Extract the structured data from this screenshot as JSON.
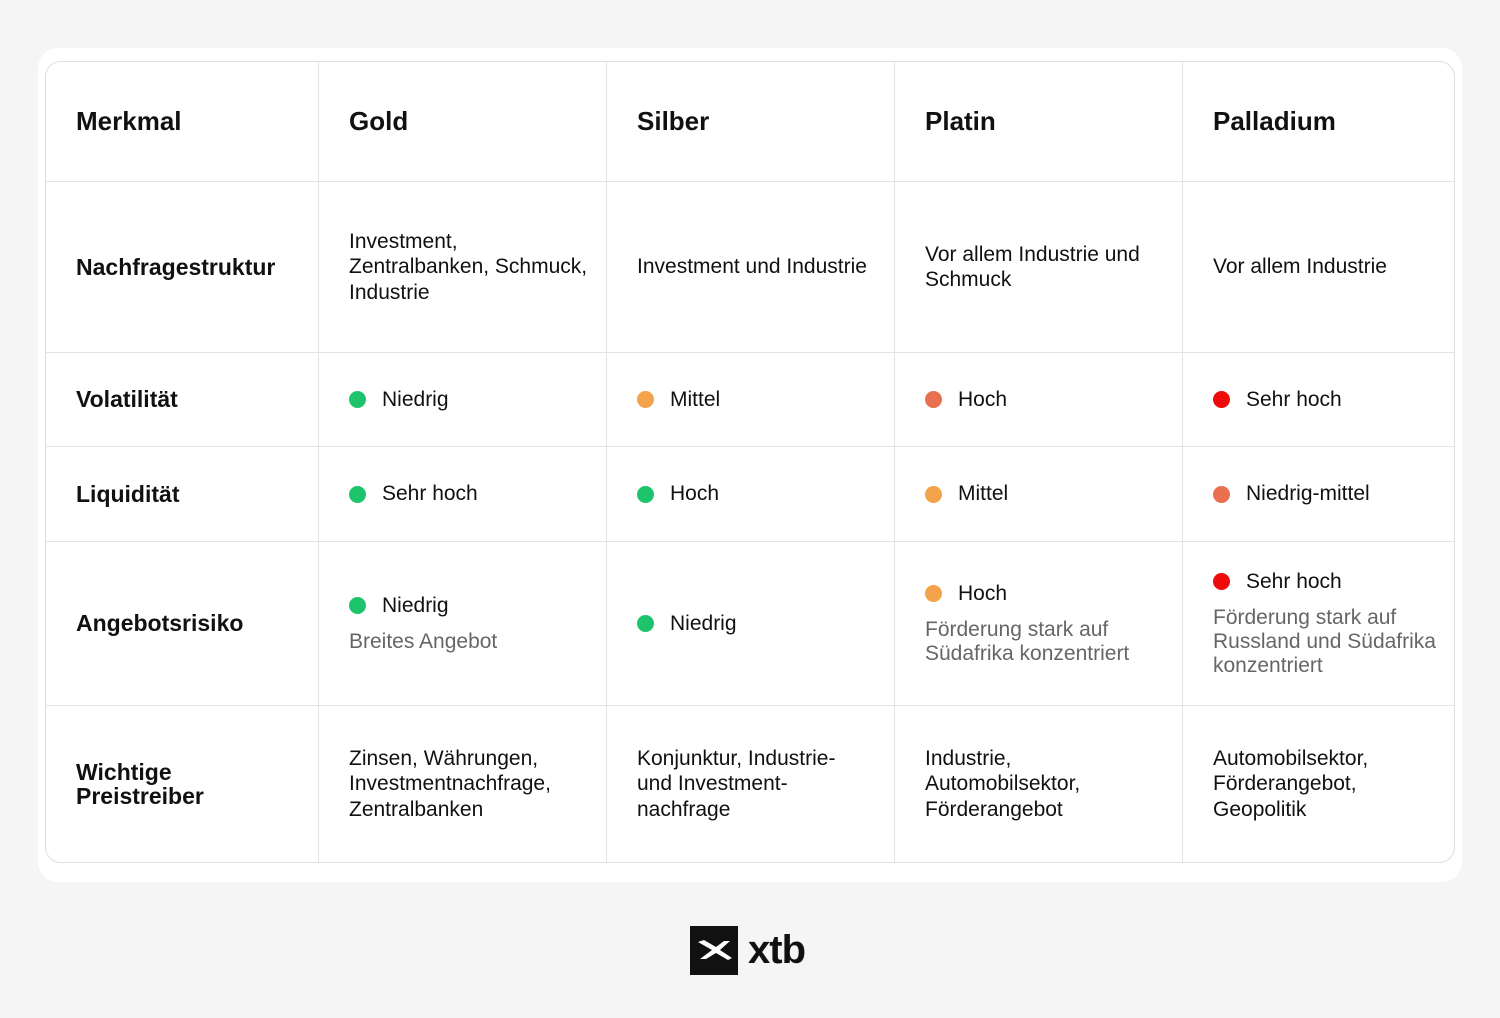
{
  "table": {
    "header": [
      "Merkmal",
      "Gold",
      "Silber",
      "Platin",
      "Palladium"
    ],
    "rows": [
      {
        "label": "Nachfragestruktur",
        "cells": [
          {
            "text": "Investment, Zentralbanken, Schmuck, Industrie"
          },
          {
            "text": "Investment und Industrie"
          },
          {
            "text": "Vor allem Industrie und Schmuck"
          },
          {
            "text": "Vor allem Industrie"
          }
        ]
      },
      {
        "label": "Volatilität",
        "cells": [
          {
            "text": "Niedrig",
            "dot": "#1ec46b"
          },
          {
            "text": "Mittel",
            "dot": "#f4a24c"
          },
          {
            "text": "Hoch",
            "dot": "#e8704f"
          },
          {
            "text": "Sehr hoch",
            "dot": "#ee0b0b"
          }
        ]
      },
      {
        "label": "Liquidität",
        "cells": [
          {
            "text": "Sehr hoch",
            "dot": "#1ec46b"
          },
          {
            "text": "Hoch",
            "dot": "#1ec46b"
          },
          {
            "text": "Mittel",
            "dot": "#f4a24c"
          },
          {
            "text": "Niedrig-mittel",
            "dot": "#e8704f"
          }
        ]
      },
      {
        "label": "Angebotsrisiko",
        "cells": [
          {
            "text": "Niedrig",
            "dot": "#1ec46b",
            "note": "Breites Angebot"
          },
          {
            "text": "Niedrig",
            "dot": "#1ec46b"
          },
          {
            "text": "Hoch",
            "dot": "#f4a24c",
            "note": "Förderung stark auf Südafrika konzentriert"
          },
          {
            "text": "Sehr hoch",
            "dot": "#ee0b0b",
            "note": "Förderung stark auf Russland und Südafrika konzentriert"
          }
        ]
      },
      {
        "label": "Wichtige Preistreiber",
        "cells": [
          {
            "text": "Zinsen, Währungen, Investmentnachfrage, Zentralbanken"
          },
          {
            "text": "Konjunktur, Industrie- und Investment-nachfrage"
          },
          {
            "text": "Industrie, Automobilsektor, Förderangebot"
          },
          {
            "text": "Automobilsektor, Förderangebot, Geopolitik"
          }
        ]
      }
    ]
  },
  "logo": {
    "text": "xtb"
  }
}
